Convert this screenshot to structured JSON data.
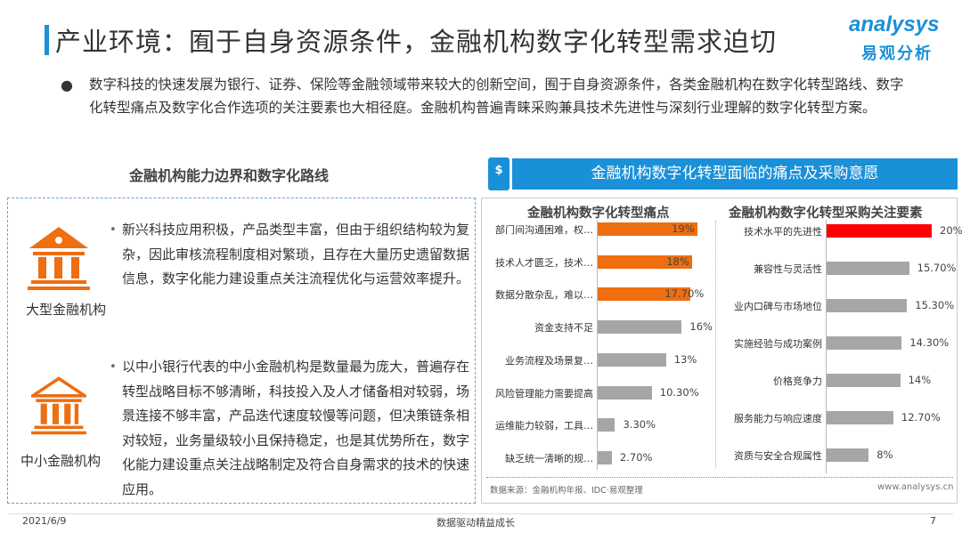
{
  "title": "产业环境：囿于自身资源条件，金融机构数字化转型需求迫切",
  "logo": {
    "en": "analysys",
    "cn": "易观分析"
  },
  "intro": "数字科技的快速发展为银行、证券、保险等金融领域带来较大的创新空间，囿于自身资源条件，各类金融机构在数字化转型路线、数字化转型痛点及数字化合作选项的关注要素也大相径庭。金融机构普遍青睐采购兼具技术先进性与深刻行业理解的数字化转型方案。",
  "left": {
    "heading": "金融机构能力边界和数字化路线",
    "items": [
      {
        "label": "大型金融机构",
        "icon": "bank-building-large-icon",
        "text": "新兴科技应用积极，产品类型丰富，但由于组织结构较为复杂，因此审核流程制度相对繁琐，且存在大量历史遗留数据信息，数字化能力建设重点关注流程优化与运营效率提升。"
      },
      {
        "label": "中小金融机构",
        "icon": "bank-building-small-icon",
        "text": "以中小银行代表的中小金融机构是数量最为庞大，普遍存在转型战略目标不够清晰，科技投入及人才储备相对较弱，场景连接不够丰富，产品迭代速度较慢等问题，但决策链条相对较短，业务量级较小且保持稳定，也是其优势所在，数字化能力建设重点关注战略制定及符合自身需求的技术的快速应用。"
      }
    ]
  },
  "right": {
    "header": "金融机构数字化转型面临的痛点及采购意愿",
    "icon": "dollar-coin-icon"
  },
  "chart_data": [
    {
      "type": "bar",
      "orientation": "horizontal",
      "title": "金融机构数字化转型痛点",
      "categories": [
        "部门间沟通困难，权…",
        "技术人才匮乏，技术…",
        "数据分散杂乱，难以…",
        "资金支持不足",
        "业务流程及场景复…",
        "风险管理能力需要提高",
        "运维能力较弱，工具…",
        "缺乏统一清晰的规…"
      ],
      "values": [
        19,
        18,
        17.7,
        16,
        13,
        10.3,
        3.3,
        2.7
      ],
      "labels": [
        "19%",
        "18%",
        "17.70%",
        "16%",
        "13%",
        "10.30%",
        "3.30%",
        "2.70%"
      ],
      "colors": [
        "#ee6e10",
        "#ee6e10",
        "#ee6e10",
        "#a6a6a6",
        "#a6a6a6",
        "#a6a6a6",
        "#a6a6a6",
        "#a6a6a6"
      ]
    },
    {
      "type": "bar",
      "orientation": "horizontal",
      "title": "金融机构数字化转型采购关注要素",
      "categories": [
        "技术水平的先进性",
        "兼容性与灵活性",
        "业内口碑与市场地位",
        "实施经验与成功案例",
        "价格竞争力",
        "服务能力与响应速度",
        "资质与安全合规属性"
      ],
      "values": [
        20,
        15.7,
        15.3,
        14.3,
        14,
        12.7,
        8
      ],
      "labels": [
        "20%",
        "15.70%",
        "15.30%",
        "14.30%",
        "14%",
        "12.70%",
        "8%"
      ],
      "colors": [
        "#ff0000",
        "#a6a6a6",
        "#a6a6a6",
        "#a6a6a6",
        "#a6a6a6",
        "#a6a6a6",
        "#a6a6a6"
      ]
    }
  ],
  "source": "数据来源：金融机构年报、IDC·易观整理",
  "website": "www.analysys.cn",
  "footer": {
    "date": "2021/6/9",
    "slogan": "数据驱动精益成长",
    "page": "7"
  },
  "colors": {
    "accent": "#1a90d8",
    "orange": "#ee6e10"
  }
}
